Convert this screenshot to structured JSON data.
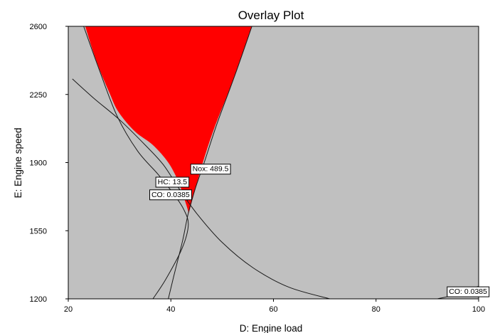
{
  "chart_data": {
    "type": "contour-overlay",
    "title": "Overlay Plot",
    "xlabel": "D: Engine load",
    "ylabel": "E: Engine speed",
    "xlim": [
      20,
      100
    ],
    "ylim": [
      1200,
      2600
    ],
    "xticks": [
      20,
      40,
      60,
      80,
      100
    ],
    "yticks": [
      1200,
      1550,
      1900,
      2250,
      2600
    ],
    "background_color": "#c0c0c0",
    "feasible_region_color": "#ff0000",
    "feasible_region": {
      "left_boundary": [
        [
          23.3,
          2600
        ],
        [
          25.5,
          2420
        ],
        [
          28.0,
          2260
        ],
        [
          29.8,
          2160
        ],
        [
          33.0,
          2060
        ],
        [
          36.5,
          1990
        ],
        [
          39.5,
          1900
        ],
        [
          41.5,
          1800
        ],
        [
          42.8,
          1700
        ],
        [
          43.5,
          1640
        ]
      ],
      "right_boundary": [
        [
          43.5,
          1640
        ],
        [
          46.0,
          1880
        ],
        [
          48.5,
          2080
        ],
        [
          51.5,
          2280
        ],
        [
          54.0,
          2460
        ],
        [
          55.8,
          2600
        ]
      ]
    },
    "contours": [
      {
        "label": "CO: 0.0385",
        "points": [
          [
            20.8,
            2330
          ],
          [
            25.0,
            2230
          ],
          [
            30.0,
            2120
          ],
          [
            35.0,
            1990
          ],
          [
            38.5,
            1890
          ],
          [
            41.5,
            1770
          ],
          [
            45.0,
            1640
          ],
          [
            50.0,
            1490
          ],
          [
            56.0,
            1360
          ],
          [
            63.0,
            1260
          ],
          [
            71.0,
            1200
          ]
        ]
      },
      {
        "label": "CO: 0.0385",
        "points": [
          [
            92.0,
            1200
          ],
          [
            96.0,
            1225
          ],
          [
            100,
            1265
          ]
        ]
      },
      {
        "label": "HC: 13.5",
        "points": [
          [
            23.0,
            2600
          ],
          [
            26.0,
            2380
          ],
          [
            29.5,
            2140
          ],
          [
            33.5,
            1960
          ],
          [
            37.5,
            1840
          ],
          [
            40.5,
            1740
          ],
          [
            42.5,
            1660
          ],
          [
            43.4,
            1580
          ],
          [
            42.2,
            1460
          ],
          [
            39.0,
            1300
          ],
          [
            36.5,
            1200
          ]
        ]
      },
      {
        "label": "Nox: 489.5",
        "points": [
          [
            55.8,
            2600
          ],
          [
            52.5,
            2350
          ],
          [
            49.0,
            2100
          ],
          [
            46.5,
            1900
          ],
          [
            44.8,
            1770
          ],
          [
            43.4,
            1640
          ],
          [
            42.3,
            1500
          ],
          [
            40.6,
            1320
          ],
          [
            39.5,
            1200
          ]
        ]
      }
    ],
    "annotations": [
      {
        "text": "Nox: 489.5",
        "x": 43.8,
        "y": 1870
      },
      {
        "text": "HC: 13.5",
        "x": 37.0,
        "y": 1803
      },
      {
        "text": "CO: 0.0385",
        "x": 35.8,
        "y": 1738
      },
      {
        "text": "CO: 0.0385",
        "x": 93.8,
        "y": 1240
      }
    ]
  }
}
